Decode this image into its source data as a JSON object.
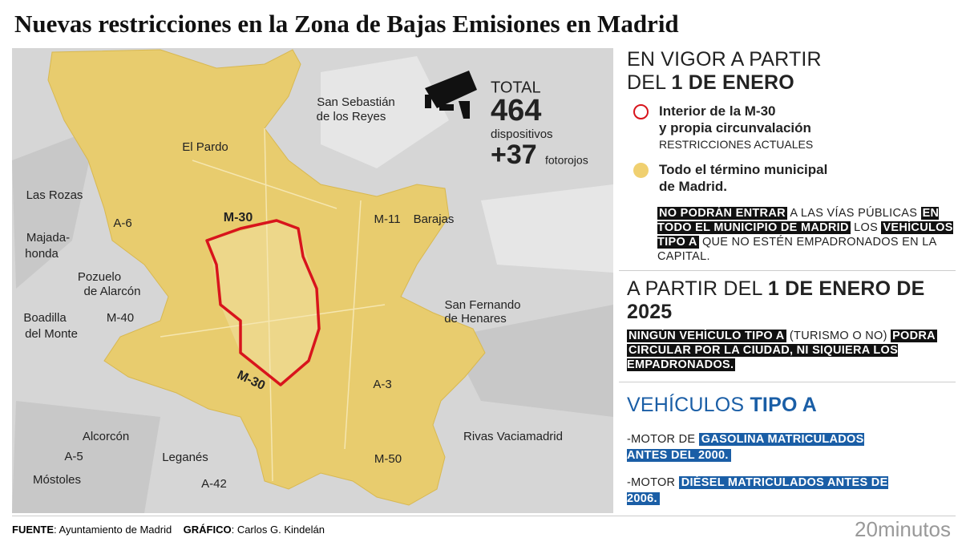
{
  "header": {
    "title": "Nuevas restricciones en la Zona de Bajas Emisiones en Madrid"
  },
  "map": {
    "places": [
      [
        "San Sebastián",
        "de los Reyes"
      ],
      [
        "El Pardo"
      ],
      [
        "Las Rozas"
      ],
      [
        "Barajas"
      ],
      [
        "Majada-",
        "honda"
      ],
      [
        "Pozuelo",
        "de Alarcón"
      ],
      [
        "Boadilla",
        "del Monte"
      ],
      [
        "San Fernando",
        "de Henares"
      ],
      [
        "Alcorcón"
      ],
      [
        "Rivas Vaciamadrid"
      ],
      [
        "Leganés"
      ],
      [
        "Móstoles"
      ]
    ],
    "roads": [
      "A-6",
      "M-11",
      "M-40",
      "A-3",
      "A-5",
      "M-50",
      "A-42"
    ],
    "ring_labels": [
      "M-30",
      "M-30"
    ],
    "cameras": {
      "total_label": "TOTAL",
      "total": 464,
      "total_unit": "dispositivos",
      "extra": "+37",
      "extra_unit": "fotorojos"
    }
  },
  "panel": {
    "section1": {
      "heading": [
        {
          "text": "EN VIGOR A PARTIR",
          "bold": false,
          "break": true
        },
        {
          "text": "DEL",
          "bold": false,
          "break": false
        },
        {
          "text": "1 DE ENERO",
          "bold": true,
          "break": false
        }
      ],
      "legend": [
        {
          "marker": "ring",
          "title": [
            "Interior de la M-30",
            "y propia circunvalación"
          ],
          "note": "RESTRICCIONES ACTUALES"
        },
        {
          "marker": "dot",
          "title": [
            "Todo el término municipal",
            "de Madrid."
          ],
          "note": null
        }
      ],
      "text": [
        {
          "text": "NO PODRÁN ENTRAR",
          "style": "dark"
        },
        {
          "text": "A LAS VÍAS PÚBLICAS",
          "style": "plain"
        },
        {
          "text": "EN TODO EL MUNICIPIO DE MADRID",
          "style": "dark"
        },
        {
          "text": "LOS",
          "style": "plain"
        },
        {
          "text": "VEHÍCULOS TIPO A",
          "style": "dark"
        },
        {
          "text": "QUE NO ESTÉN EMPADRONADOS EN LA CAPITAL.",
          "style": "plain"
        }
      ]
    },
    "section2": {
      "heading": [
        {
          "text": "A PARTIR DEL",
          "bold": false,
          "break": false
        },
        {
          "text": "1 DE ENERO DE 2025",
          "bold": true,
          "break": false
        }
      ],
      "text": [
        {
          "text": "NINGÚN VEHÍCULO TIPO A",
          "style": "dark"
        },
        {
          "text": "(TURISMO O NO)",
          "style": "plain"
        },
        {
          "text": "PODRA",
          "style": "dark"
        },
        {
          "text": "CIRCULAR POR LA CIUDAD, NI SIQUIERA LOS EMPADRONADOS.",
          "style": "dark"
        }
      ]
    },
    "section3": {
      "heading": [
        {
          "text": "VEHÍCULOS",
          "bold": false,
          "break": false
        },
        {
          "text": "TIPO A",
          "bold": true,
          "break": false
        }
      ],
      "items": [
        [
          {
            "text": "-MOTOR DE",
            "style": "plain"
          },
          {
            "text": "GASOLINA MATRICULADOS ANTES DEL 2000.",
            "style": "blue"
          }
        ],
        [
          {
            "text": "-MOTOR",
            "style": "plain"
          },
          {
            "text": "DIÉSEL MATRICULADOS ANTES DE 2006.",
            "style": "blue"
          }
        ]
      ]
    }
  },
  "footer": {
    "source_label": "FUENTE",
    "source": ": Ayuntamiento de Madrid",
    "credit_label": "GRÁFICO",
    "credit": ": Carlos G. Kindelán",
    "logo": "20minutos"
  }
}
